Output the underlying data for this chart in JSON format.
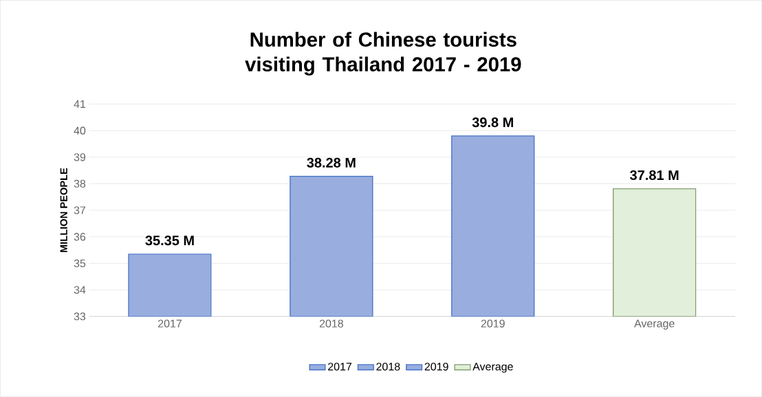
{
  "chart_data": {
    "type": "bar",
    "title": "Number of Chinese tourists visiting Thailand 2017 - 2019",
    "ylabel": "MILLION PEOPLE",
    "categories": [
      "2017",
      "2018",
      "2019",
      "Average"
    ],
    "series": [
      {
        "name": "2017",
        "color": "#9aaddf",
        "values": [
          35.35,
          null,
          null,
          null
        ],
        "value_labels": [
          "35.35 M",
          null,
          null,
          null
        ]
      },
      {
        "name": "2018",
        "color": "#9aaddf",
        "values": [
          null,
          38.28,
          null,
          null
        ],
        "value_labels": [
          null,
          "38.28 M",
          null,
          null
        ]
      },
      {
        "name": "2019",
        "color": "#9aaddf",
        "values": [
          null,
          null,
          39.8,
          null
        ],
        "value_labels": [
          null,
          null,
          "39.8 M",
          null
        ]
      },
      {
        "name": "Average",
        "color": "#e2efda",
        "values": [
          null,
          null,
          null,
          37.81
        ],
        "value_labels": [
          null,
          null,
          null,
          "37.81 M"
        ]
      }
    ],
    "ylim": [
      33,
      41
    ],
    "yticks": [
      33,
      34,
      35,
      36,
      37,
      38,
      39,
      40,
      41
    ],
    "grid": "y",
    "legend": "bottom"
  }
}
